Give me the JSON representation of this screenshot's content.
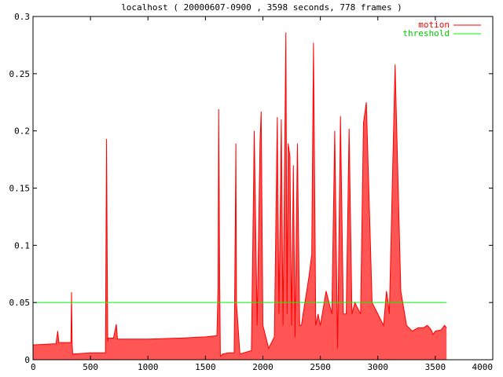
{
  "chart_data": {
    "type": "area",
    "title": "localhost ( 20000607-0900 , 3598 seconds, 778 frames )",
    "xlabel": "",
    "ylabel": "",
    "xlim": [
      0,
      4000
    ],
    "ylim": [
      0,
      0.3
    ],
    "x_ticks": [
      0,
      500,
      1000,
      1500,
      2000,
      2500,
      3000,
      3500,
      4000
    ],
    "y_ticks": [
      0,
      0.05,
      0.1,
      0.15,
      0.2,
      0.25,
      0.3
    ],
    "x_tick_labels": [
      "0",
      "500",
      "1000",
      "1500",
      "2000",
      "2500",
      "3000",
      "3500",
      "4000"
    ],
    "y_tick_labels": [
      "0",
      "0.05",
      "0.1",
      "0.15",
      "0.2",
      "0.25",
      "0.3"
    ],
    "grid": false,
    "legend_position": "top-right",
    "series": [
      {
        "name": "motion",
        "color": "#ff0000",
        "fill_color": "#ff5555",
        "x": [
          0,
          200,
          215,
          225,
          330,
          335,
          340,
          345,
          500,
          630,
          640,
          645,
          650,
          655,
          700,
          725,
          735,
          1000,
          1300,
          1500,
          1600,
          1610,
          1615,
          1625,
          1630,
          1650,
          1700,
          1750,
          1760,
          1765,
          1770,
          1800,
          1900,
          1925,
          1950,
          1975,
          1985,
          2000,
          2050,
          2100,
          2125,
          2140,
          2160,
          2175,
          2200,
          2210,
          2220,
          2235,
          2250,
          2265,
          2280,
          2300,
          2320,
          2335,
          2350,
          2400,
          2425,
          2440,
          2460,
          2480,
          2500,
          2550,
          2600,
          2625,
          2650,
          2675,
          2700,
          2725,
          2750,
          2775,
          2800,
          2850,
          2875,
          2900,
          2950,
          3000,
          3050,
          3075,
          3090,
          3100,
          3150,
          3200,
          3250,
          3300,
          3350,
          3400,
          3430,
          3450,
          3470,
          3480,
          3500,
          3550,
          3580,
          3598
        ],
        "values": [
          0.013,
          0.014,
          0.025,
          0.015,
          0.015,
          0.059,
          0.015,
          0.005,
          0.006,
          0.006,
          0.193,
          0.095,
          0.016,
          0.019,
          0.019,
          0.031,
          0.018,
          0.018,
          0.019,
          0.02,
          0.021,
          0.063,
          0.219,
          0.06,
          0.003,
          0.005,
          0.006,
          0.006,
          0.12,
          0.189,
          0.05,
          0.005,
          0.008,
          0.2,
          0.03,
          0.19,
          0.217,
          0.03,
          0.01,
          0.02,
          0.212,
          0.04,
          0.21,
          0.03,
          0.286,
          0.04,
          0.189,
          0.178,
          0.03,
          0.17,
          0.02,
          0.189,
          0.03,
          0.03,
          0.04,
          0.072,
          0.092,
          0.277,
          0.03,
          0.04,
          0.03,
          0.06,
          0.04,
          0.2,
          0.01,
          0.213,
          0.04,
          0.04,
          0.202,
          0.04,
          0.05,
          0.04,
          0.207,
          0.225,
          0.05,
          0.04,
          0.03,
          0.06,
          0.05,
          0.04,
          0.258,
          0.06,
          0.03,
          0.025,
          0.028,
          0.028,
          0.03,
          0.028,
          0.025,
          0.022,
          0.025,
          0.026,
          0.03,
          0.028
        ]
      },
      {
        "name": "threshold",
        "color": "#00ff00",
        "x": [
          0,
          3598
        ],
        "values": [
          0.05,
          0.05
        ]
      }
    ]
  }
}
